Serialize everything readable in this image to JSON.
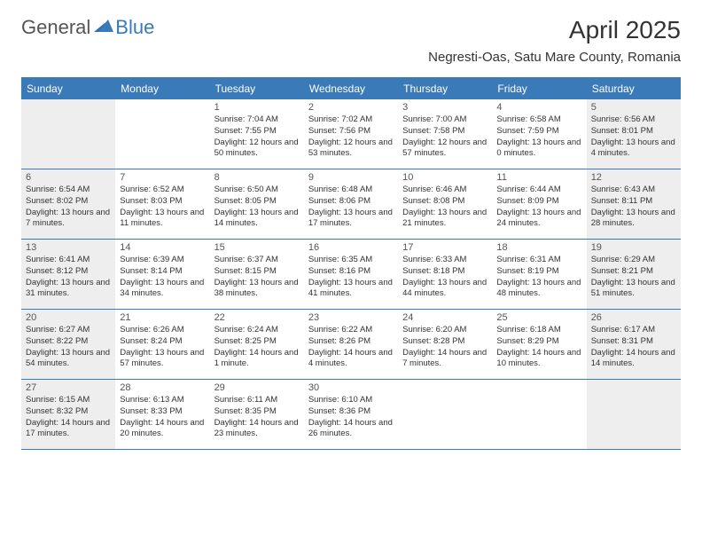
{
  "logo": {
    "text_general": "General",
    "text_blue": "Blue"
  },
  "title": "April 2025",
  "location": "Negresti-Oas, Satu Mare County, Romania",
  "colors": {
    "header_bg": "#3a7ab8",
    "header_text": "#ffffff",
    "shaded_bg": "#eeeeee",
    "text_dark": "#333333",
    "text_mid": "#555555",
    "logo_blue": "#3a7ab8"
  },
  "day_labels": [
    "Sunday",
    "Monday",
    "Tuesday",
    "Wednesday",
    "Thursday",
    "Friday",
    "Saturday"
  ],
  "shaded_columns": [
    0,
    6
  ],
  "weeks": [
    [
      null,
      null,
      {
        "n": "1",
        "sunrise": "Sunrise: 7:04 AM",
        "sunset": "Sunset: 7:55 PM",
        "daylight": "Daylight: 12 hours and 50 minutes."
      },
      {
        "n": "2",
        "sunrise": "Sunrise: 7:02 AM",
        "sunset": "Sunset: 7:56 PM",
        "daylight": "Daylight: 12 hours and 53 minutes."
      },
      {
        "n": "3",
        "sunrise": "Sunrise: 7:00 AM",
        "sunset": "Sunset: 7:58 PM",
        "daylight": "Daylight: 12 hours and 57 minutes."
      },
      {
        "n": "4",
        "sunrise": "Sunrise: 6:58 AM",
        "sunset": "Sunset: 7:59 PM",
        "daylight": "Daylight: 13 hours and 0 minutes."
      },
      {
        "n": "5",
        "sunrise": "Sunrise: 6:56 AM",
        "sunset": "Sunset: 8:01 PM",
        "daylight": "Daylight: 13 hours and 4 minutes."
      }
    ],
    [
      {
        "n": "6",
        "sunrise": "Sunrise: 6:54 AM",
        "sunset": "Sunset: 8:02 PM",
        "daylight": "Daylight: 13 hours and 7 minutes."
      },
      {
        "n": "7",
        "sunrise": "Sunrise: 6:52 AM",
        "sunset": "Sunset: 8:03 PM",
        "daylight": "Daylight: 13 hours and 11 minutes."
      },
      {
        "n": "8",
        "sunrise": "Sunrise: 6:50 AM",
        "sunset": "Sunset: 8:05 PM",
        "daylight": "Daylight: 13 hours and 14 minutes."
      },
      {
        "n": "9",
        "sunrise": "Sunrise: 6:48 AM",
        "sunset": "Sunset: 8:06 PM",
        "daylight": "Daylight: 13 hours and 17 minutes."
      },
      {
        "n": "10",
        "sunrise": "Sunrise: 6:46 AM",
        "sunset": "Sunset: 8:08 PM",
        "daylight": "Daylight: 13 hours and 21 minutes."
      },
      {
        "n": "11",
        "sunrise": "Sunrise: 6:44 AM",
        "sunset": "Sunset: 8:09 PM",
        "daylight": "Daylight: 13 hours and 24 minutes."
      },
      {
        "n": "12",
        "sunrise": "Sunrise: 6:43 AM",
        "sunset": "Sunset: 8:11 PM",
        "daylight": "Daylight: 13 hours and 28 minutes."
      }
    ],
    [
      {
        "n": "13",
        "sunrise": "Sunrise: 6:41 AM",
        "sunset": "Sunset: 8:12 PM",
        "daylight": "Daylight: 13 hours and 31 minutes."
      },
      {
        "n": "14",
        "sunrise": "Sunrise: 6:39 AM",
        "sunset": "Sunset: 8:14 PM",
        "daylight": "Daylight: 13 hours and 34 minutes."
      },
      {
        "n": "15",
        "sunrise": "Sunrise: 6:37 AM",
        "sunset": "Sunset: 8:15 PM",
        "daylight": "Daylight: 13 hours and 38 minutes."
      },
      {
        "n": "16",
        "sunrise": "Sunrise: 6:35 AM",
        "sunset": "Sunset: 8:16 PM",
        "daylight": "Daylight: 13 hours and 41 minutes."
      },
      {
        "n": "17",
        "sunrise": "Sunrise: 6:33 AM",
        "sunset": "Sunset: 8:18 PM",
        "daylight": "Daylight: 13 hours and 44 minutes."
      },
      {
        "n": "18",
        "sunrise": "Sunrise: 6:31 AM",
        "sunset": "Sunset: 8:19 PM",
        "daylight": "Daylight: 13 hours and 48 minutes."
      },
      {
        "n": "19",
        "sunrise": "Sunrise: 6:29 AM",
        "sunset": "Sunset: 8:21 PM",
        "daylight": "Daylight: 13 hours and 51 minutes."
      }
    ],
    [
      {
        "n": "20",
        "sunrise": "Sunrise: 6:27 AM",
        "sunset": "Sunset: 8:22 PM",
        "daylight": "Daylight: 13 hours and 54 minutes."
      },
      {
        "n": "21",
        "sunrise": "Sunrise: 6:26 AM",
        "sunset": "Sunset: 8:24 PM",
        "daylight": "Daylight: 13 hours and 57 minutes."
      },
      {
        "n": "22",
        "sunrise": "Sunrise: 6:24 AM",
        "sunset": "Sunset: 8:25 PM",
        "daylight": "Daylight: 14 hours and 1 minute."
      },
      {
        "n": "23",
        "sunrise": "Sunrise: 6:22 AM",
        "sunset": "Sunset: 8:26 PM",
        "daylight": "Daylight: 14 hours and 4 minutes."
      },
      {
        "n": "24",
        "sunrise": "Sunrise: 6:20 AM",
        "sunset": "Sunset: 8:28 PM",
        "daylight": "Daylight: 14 hours and 7 minutes."
      },
      {
        "n": "25",
        "sunrise": "Sunrise: 6:18 AM",
        "sunset": "Sunset: 8:29 PM",
        "daylight": "Daylight: 14 hours and 10 minutes."
      },
      {
        "n": "26",
        "sunrise": "Sunrise: 6:17 AM",
        "sunset": "Sunset: 8:31 PM",
        "daylight": "Daylight: 14 hours and 14 minutes."
      }
    ],
    [
      {
        "n": "27",
        "sunrise": "Sunrise: 6:15 AM",
        "sunset": "Sunset: 8:32 PM",
        "daylight": "Daylight: 14 hours and 17 minutes."
      },
      {
        "n": "28",
        "sunrise": "Sunrise: 6:13 AM",
        "sunset": "Sunset: 8:33 PM",
        "daylight": "Daylight: 14 hours and 20 minutes."
      },
      {
        "n": "29",
        "sunrise": "Sunrise: 6:11 AM",
        "sunset": "Sunset: 8:35 PM",
        "daylight": "Daylight: 14 hours and 23 minutes."
      },
      {
        "n": "30",
        "sunrise": "Sunrise: 6:10 AM",
        "sunset": "Sunset: 8:36 PM",
        "daylight": "Daylight: 14 hours and 26 minutes."
      },
      null,
      null,
      null
    ]
  ]
}
